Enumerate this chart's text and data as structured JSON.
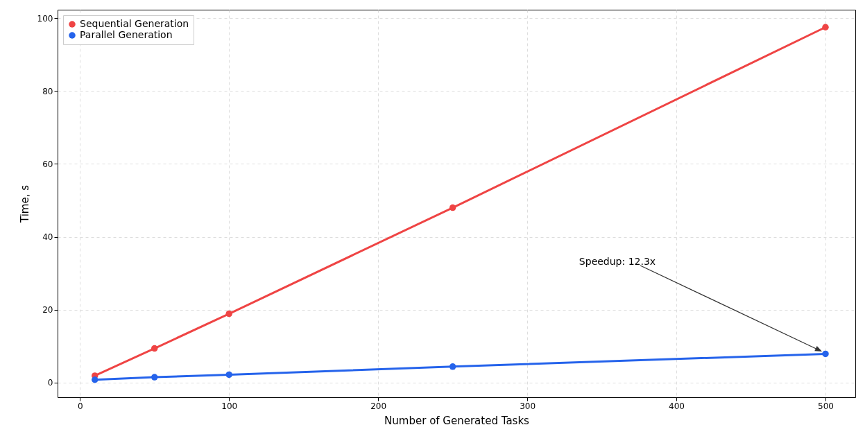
{
  "chart_data": {
    "type": "line",
    "xlabel": "Number of Generated Tasks",
    "ylabel": "Time, s",
    "x": [
      10,
      50,
      100,
      250,
      500
    ],
    "series": [
      {
        "name": "Sequential Generation",
        "color": "#ef4444",
        "values": [
          1.9,
          9.4,
          18.9,
          48.0,
          97.5
        ]
      },
      {
        "name": "Parallel Generation",
        "color": "#2563eb",
        "values": [
          0.8,
          1.5,
          2.2,
          4.4,
          7.9
        ]
      }
    ],
    "xlim": [
      -15,
      520
    ],
    "ylim": [
      -4,
      102.3
    ],
    "xticks": [
      0,
      100,
      200,
      300,
      400,
      500
    ],
    "yticks": [
      0,
      20,
      40,
      60,
      80,
      100
    ],
    "grid": true,
    "legend": "top left",
    "marker": "circle",
    "line_style": "solid",
    "annotations": [
      "Speedup: 12.3x"
    ]
  }
}
